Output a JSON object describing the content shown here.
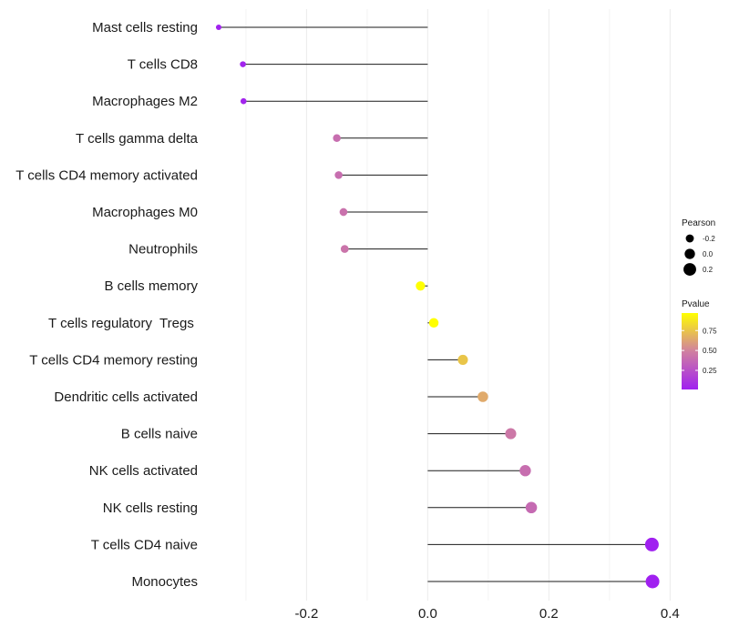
{
  "chart_data": {
    "type": "lollipop",
    "title": "",
    "xlabel": "",
    "ylabel": "",
    "xlim": [
      -0.36,
      0.41
    ],
    "x_ticks": [
      -0.2,
      0.0,
      0.2,
      0.4
    ],
    "x_tick_labels": [
      "-0.2",
      "0.0",
      "0.2",
      "0.4"
    ],
    "grid": "vertical",
    "categories": [
      "Mast cells resting",
      "T cells CD8",
      "Macrophages M2",
      "T cells gamma delta",
      "T cells CD4 memory activated",
      "Macrophages M0",
      "Neutrophils",
      "B cells memory",
      "T cells regulatory  Tregs ",
      "T cells CD4 memory resting",
      "Dendritic cells activated",
      "B cells naive",
      "NK cells activated",
      "NK cells resting",
      "T cells CD4 naive",
      "Monocytes"
    ],
    "pearson": [
      -0.345,
      -0.305,
      -0.304,
      -0.15,
      -0.147,
      -0.139,
      -0.137,
      -0.012,
      0.01,
      0.058,
      0.091,
      0.137,
      0.161,
      0.171,
      0.37,
      0.371
    ],
    "pvalue": [
      0.02,
      0.03,
      0.03,
      0.4,
      0.4,
      0.42,
      0.43,
      0.97,
      0.97,
      0.75,
      0.65,
      0.45,
      0.4,
      0.38,
      0.01,
      0.01
    ],
    "legend": {
      "size_title": "Pearson",
      "size_labels": [
        "-0.2",
        "0.0",
        "0.2"
      ],
      "size_values": [
        -0.2,
        0.0,
        0.2
      ],
      "color_title": "Pvalue",
      "color_labels": [
        "0.75",
        "0.50",
        "0.25"
      ],
      "color_values": [
        0.75,
        0.5,
        0.25
      ],
      "color_range": [
        0.01,
        0.97
      ],
      "color_low": "#a020f0",
      "color_mid": "#d080a0",
      "color_high": "#ffff00",
      "placement": "right"
    }
  }
}
